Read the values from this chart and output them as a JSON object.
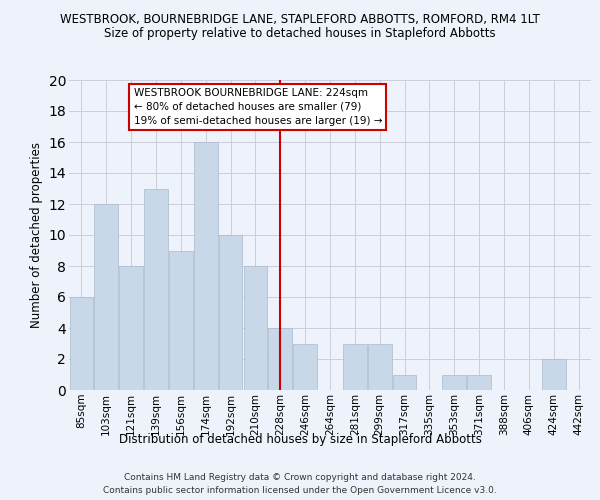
{
  "title": "WESTBROOK, BOURNEBRIDGE LANE, STAPLEFORD ABBOTTS, ROMFORD, RM4 1LT",
  "subtitle": "Size of property relative to detached houses in Stapleford Abbotts",
  "xlabel": "Distribution of detached houses by size in Stapleford Abbotts",
  "ylabel": "Number of detached properties",
  "categories": [
    "85sqm",
    "103sqm",
    "121sqm",
    "139sqm",
    "156sqm",
    "174sqm",
    "192sqm",
    "210sqm",
    "228sqm",
    "246sqm",
    "264sqm",
    "281sqm",
    "299sqm",
    "317sqm",
    "335sqm",
    "353sqm",
    "371sqm",
    "388sqm",
    "406sqm",
    "424sqm",
    "442sqm"
  ],
  "values": [
    6,
    12,
    8,
    13,
    9,
    16,
    10,
    8,
    4,
    3,
    0,
    3,
    3,
    1,
    0,
    1,
    1,
    0,
    0,
    2,
    0
  ],
  "bar_color": "#c8d8e8",
  "bar_edge_color": "#aabbcc",
  "vline_x_index": 8,
  "vline_color": "#cc0000",
  "ylim": [
    0,
    20
  ],
  "yticks": [
    0,
    2,
    4,
    6,
    8,
    10,
    12,
    14,
    16,
    18,
    20
  ],
  "annotation_title": "WESTBROOK BOURNEBRIDGE LANE: 224sqm",
  "annotation_line1": "← 80% of detached houses are smaller (79)",
  "annotation_line2": "19% of semi-detached houses are larger (19) →",
  "annotation_box_color": "#ffffff",
  "annotation_box_edge": "#cc0000",
  "footer1": "Contains HM Land Registry data © Crown copyright and database right 2024.",
  "footer2": "Contains public sector information licensed under the Open Government Licence v3.0.",
  "background_color": "#eef2fb",
  "grid_color": "#ccccdd",
  "title_fontsize": 8.5,
  "subtitle_fontsize": 8.5,
  "xlabel_fontsize": 8.5,
  "ylabel_fontsize": 8.5,
  "footer_fontsize": 6.5,
  "tick_fontsize": 7.5,
  "annot_fontsize": 7.5
}
